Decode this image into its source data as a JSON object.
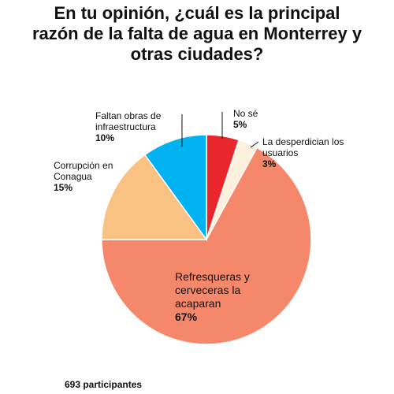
{
  "chart_data": {
    "type": "pie",
    "title": "En tu opinión, ¿cuál es la principal razón de la falta de agua en Monterrey y otras ciudades?",
    "slices": [
      {
        "label": "No sé",
        "value": 5,
        "value_label": "5%",
        "color": "#e8262b"
      },
      {
        "label": "La desperdician los usuarios",
        "value": 3,
        "value_label": "3%",
        "color": "#fdf0dc"
      },
      {
        "label": "Refresqueras y cerveceras la acaparan",
        "value": 67,
        "value_label": "67%",
        "color": "#f5886a"
      },
      {
        "label": "Corrupción en Conagua",
        "value": 15,
        "value_label": "15%",
        "color": "#f9c283"
      },
      {
        "label": "Faltan obras de infraestructura",
        "value": 10,
        "value_label": "10%",
        "color": "#00b2ef"
      }
    ]
  },
  "footer": "693 participantes"
}
